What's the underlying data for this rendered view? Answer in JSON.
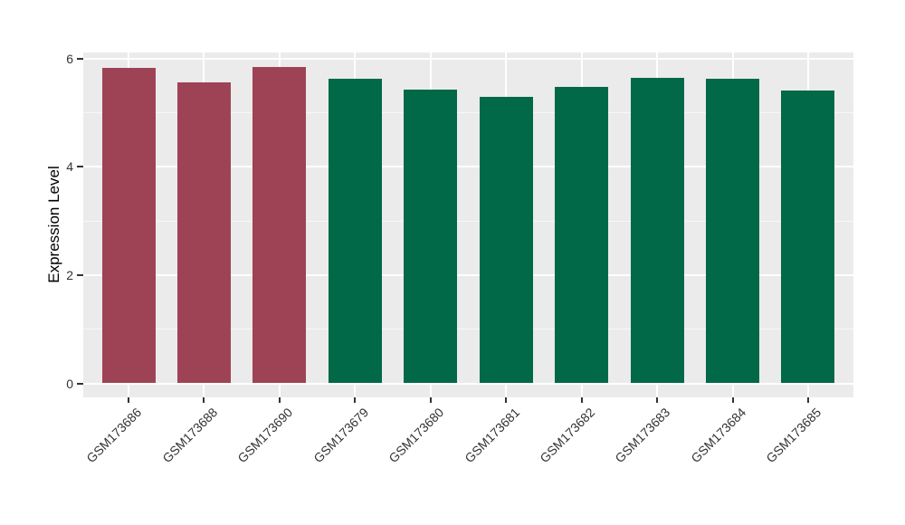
{
  "figure": {
    "background_color": "#ffffff"
  },
  "chart_data": {
    "type": "bar",
    "title": "",
    "xlabel": "",
    "ylabel": "Expression Level",
    "categories": [
      "GSM173686",
      "GSM173688",
      "GSM173690",
      "GSM173679",
      "GSM173680",
      "GSM173681",
      "GSM173682",
      "GSM173683",
      "GSM173684",
      "GSM173685"
    ],
    "values": [
      5.83,
      5.56,
      5.84,
      5.62,
      5.43,
      5.29,
      5.47,
      5.64,
      5.63,
      5.4
    ],
    "bar_colors": [
      "#9E4355",
      "#9E4355",
      "#9E4355",
      "#016848",
      "#016848",
      "#016848",
      "#016848",
      "#016848",
      "#016848",
      "#016848"
    ],
    "group_colors": {
      "red_group": "#9E4355",
      "green_group": "#016848"
    },
    "y_major_ticks": [
      0,
      2,
      4,
      6
    ],
    "y_tick_labels": [
      "0",
      "2",
      "4",
      "6"
    ],
    "y_minor_gridlines": [
      1,
      3,
      5
    ],
    "ylim": [
      -0.26,
      6.11
    ],
    "x_tick_label_angle_deg": 45,
    "grid": true,
    "legend": "none",
    "panel_background": "#EBEBEB",
    "major_gridline_color": "#FFFFFF",
    "minor_gridline_color": "#FFFFFF",
    "tick_color": "#333333",
    "tick_label_color": "#333333",
    "axis_title_color": "#000000"
  }
}
